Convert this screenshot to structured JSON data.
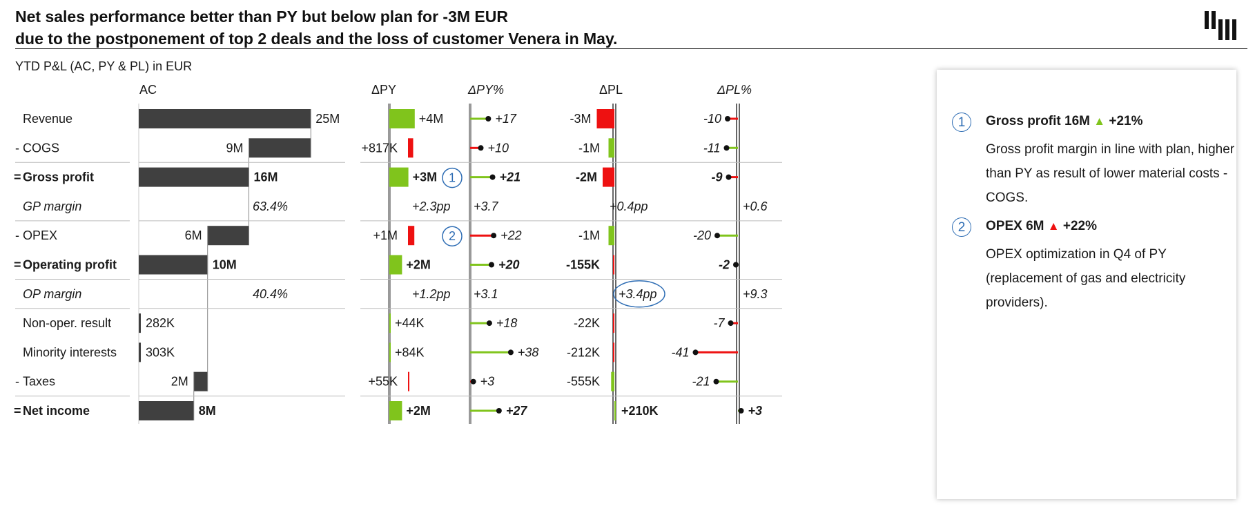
{
  "headline": {
    "line1": "Net sales performance better than PY but below plan for -3M EUR",
    "line2": "due to the postponement of top 2 deals and the loss of customer Venera in May."
  },
  "logo": "zebra-bi-logo",
  "colors": {
    "ac_bar": "#404040",
    "positive": "#80c41c",
    "negative": "#ee1111",
    "callout": "#2e6db4",
    "rule": "#bbbbbb"
  },
  "chart_data": {
    "type": "table",
    "title": "YTD P&L (AC, PY & PL) in EUR",
    "headers": {
      "ac": "AC",
      "dpy": "ΔPY",
      "dpyp": "ΔPY%",
      "dpl": "ΔPL",
      "dplp": "ΔPL%"
    },
    "units": "EUR (M = millions, K = thousands)",
    "rows": [
      {
        "prefix": "",
        "label": "Revenue",
        "style": "normal",
        "ac": 25,
        "ac_label": "25M",
        "ac_range": [
          0,
          25
        ],
        "dpy": 4,
        "dpy_label": "+4M",
        "dpy_good": true,
        "dpyp": 17,
        "dpyp_label": "+17",
        "dpl": -3,
        "dpl_label": "-3M",
        "dpl_good": false,
        "dplp": -10,
        "dplp_label": "-10"
      },
      {
        "prefix": "-",
        "label": "COGS",
        "style": "normal",
        "ac": 9,
        "ac_label": "9M",
        "ac_range": [
          16,
          25
        ],
        "dpy": 0.817,
        "dpy_label": "+817K",
        "dpy_good": false,
        "dpyp": 10,
        "dpyp_label": "+10",
        "dpyp_good": false,
        "dpl": -1,
        "dpl_label": "-1M",
        "dpl_good": true,
        "dplp": -11,
        "dplp_label": "-11",
        "dplp_good": true
      },
      {
        "prefix": "=",
        "label": "Gross profit",
        "style": "bold",
        "ac": 16,
        "ac_label": "16M",
        "ac_range": [
          0,
          16
        ],
        "dpy": 3,
        "dpy_label": "+3M",
        "dpy_good": true,
        "dpyp": 21,
        "dpyp_label": "+21",
        "dpl": -2,
        "dpl_label": "-2M",
        "dpl_good": false,
        "dplp": -9,
        "dplp_label": "-9",
        "callout": "1"
      },
      {
        "prefix": "",
        "label": "GP margin",
        "style": "italic",
        "ac_text": "63.4%",
        "dpy_text": "+2.3pp",
        "dpyp_text": "+3.7",
        "dpl_text": "+0.4pp",
        "dplp_text": "+0.6"
      },
      {
        "prefix": "-",
        "label": "OPEX",
        "style": "normal",
        "ac": 6,
        "ac_label": "6M",
        "ac_range": [
          10,
          16
        ],
        "dpy": 1,
        "dpy_label": "+1M",
        "dpy_good": false,
        "dpyp": 22,
        "dpyp_label": "+22",
        "dpyp_good": false,
        "dpl": -1,
        "dpl_label": "-1M",
        "dpl_good": true,
        "dplp": -20,
        "dplp_label": "-20",
        "dplp_good": true,
        "callout": "2"
      },
      {
        "prefix": "=",
        "label": "Operating profit",
        "style": "bold",
        "ac": 10,
        "ac_label": "10M",
        "ac_range": [
          0,
          10
        ],
        "dpy": 2,
        "dpy_label": "+2M",
        "dpy_good": true,
        "dpyp": 20,
        "dpyp_label": "+20",
        "dpl": -0.155,
        "dpl_label": "-155K",
        "dpl_good": false,
        "dplp": -2,
        "dplp_label": "-2"
      },
      {
        "prefix": "",
        "label": "OP margin",
        "style": "italic",
        "ac_text": "40.4%",
        "dpy_text": "+1.2pp",
        "dpyp_text": "+3.1",
        "dpl_text": "+3.4pp",
        "dpl_circled": true,
        "dplp_text": "+9.3"
      },
      {
        "prefix": "",
        "label": "Non-oper. result",
        "style": "normal",
        "ac": 0.282,
        "ac_label": "282K",
        "ac_range": [
          0,
          0.282
        ],
        "dpy": 0.044,
        "dpy_label": "+44K",
        "dpy_good": true,
        "dpyp": 18,
        "dpyp_label": "+18",
        "dpl": -0.022,
        "dpl_label": "-22K",
        "dpl_good": false,
        "dplp": -7,
        "dplp_label": "-7"
      },
      {
        "prefix": "",
        "label": "Minority interests",
        "style": "normal",
        "ac": 0.303,
        "ac_label": "303K",
        "ac_range": [
          0,
          0.303
        ],
        "dpy": 0.084,
        "dpy_label": "+84K",
        "dpy_good": true,
        "dpyp": 38,
        "dpyp_label": "+38",
        "dpl": -0.212,
        "dpl_label": "-212K",
        "dpl_good": false,
        "dplp": -41,
        "dplp_label": "-41"
      },
      {
        "prefix": "-",
        "label": "Taxes",
        "style": "normal",
        "ac": 2,
        "ac_label": "2M",
        "ac_range": [
          8,
          10
        ],
        "dpy": 0.055,
        "dpy_label": "+55K",
        "dpy_good": false,
        "dpyp": 3,
        "dpyp_label": "+3",
        "dpyp_good": false,
        "dpl": -0.555,
        "dpl_label": "-555K",
        "dpl_good": true,
        "dplp": -21,
        "dplp_label": "-21",
        "dplp_good": true
      },
      {
        "prefix": "=",
        "label": "Net income",
        "style": "bold",
        "ac": 8,
        "ac_label": "8M",
        "ac_range": [
          0,
          8
        ],
        "dpy": 2,
        "dpy_label": "+2M",
        "dpy_good": true,
        "dpyp": 27,
        "dpyp_label": "+27",
        "dpl": 0.21,
        "dpl_label": "+210K",
        "dpl_good": true,
        "dplp": 3,
        "dplp_label": "+3"
      }
    ],
    "separators_after": [
      "COGS",
      "GP margin",
      "Operating profit",
      "OP margin",
      "Taxes"
    ]
  },
  "notes": [
    {
      "num": "1",
      "title": "Gross profit 16M",
      "arrow": "▲",
      "arrow_good": true,
      "delta": "+21%",
      "text": "Gross profit margin in line with plan, higher than PY as result of lower material costs - COGS."
    },
    {
      "num": "2",
      "title": "OPEX 6M",
      "arrow": "▲",
      "arrow_good": false,
      "delta": "+22%",
      "text": "OPEX optimization in Q4 of PY (replacement of gas and electricity providers)."
    }
  ]
}
